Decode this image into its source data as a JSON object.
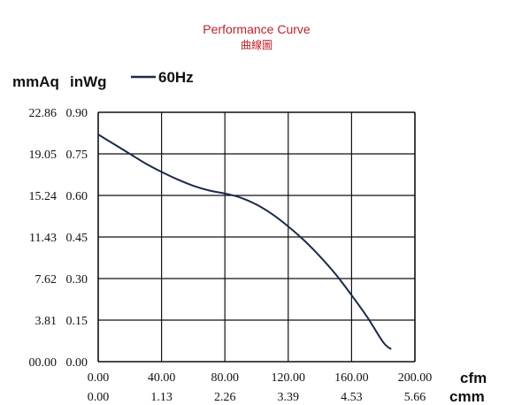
{
  "chart_data": {
    "type": "line",
    "title": "Performance Curve",
    "subtitle": "曲線圖",
    "title_color": "#c0202a",
    "line_color": "#1a2a4a",
    "grid": true,
    "legend": {
      "placement": "top-left",
      "entries": [
        "60Hz"
      ]
    },
    "left_axis_units": [
      "mmAq",
      "inWg"
    ],
    "mmAq_ticks": [
      "22.86",
      "19.05",
      "15.24",
      "11.43",
      "7.62",
      "3.81",
      "00.00"
    ],
    "inWg_ticks": [
      "0.90",
      "0.75",
      "0.60",
      "0.45",
      "0.30",
      "0.15",
      "0.00"
    ],
    "x_units": [
      "cfm",
      "cmm"
    ],
    "cfm_ticks": [
      "0.00",
      "40.00",
      "80.00",
      "120.00",
      "160.00",
      "200.00"
    ],
    "cmm_ticks": [
      "0.00",
      "1.13",
      "2.26",
      "3.39",
      "4.53",
      "5.66"
    ],
    "xlim": [
      0,
      200
    ],
    "ylim": [
      0,
      0.9
    ],
    "series": [
      {
        "name": "60Hz",
        "x": [
          0,
          10,
          20,
          30,
          40,
          50,
          60,
          70,
          80,
          90,
          100,
          110,
          120,
          130,
          140,
          150,
          160,
          170,
          180,
          185
        ],
        "y": [
          0.82,
          0.785,
          0.75,
          0.715,
          0.685,
          0.658,
          0.635,
          0.618,
          0.607,
          0.592,
          0.567,
          0.532,
          0.488,
          0.438,
          0.38,
          0.315,
          0.24,
          0.16,
          0.07,
          0.045
        ]
      }
    ]
  }
}
